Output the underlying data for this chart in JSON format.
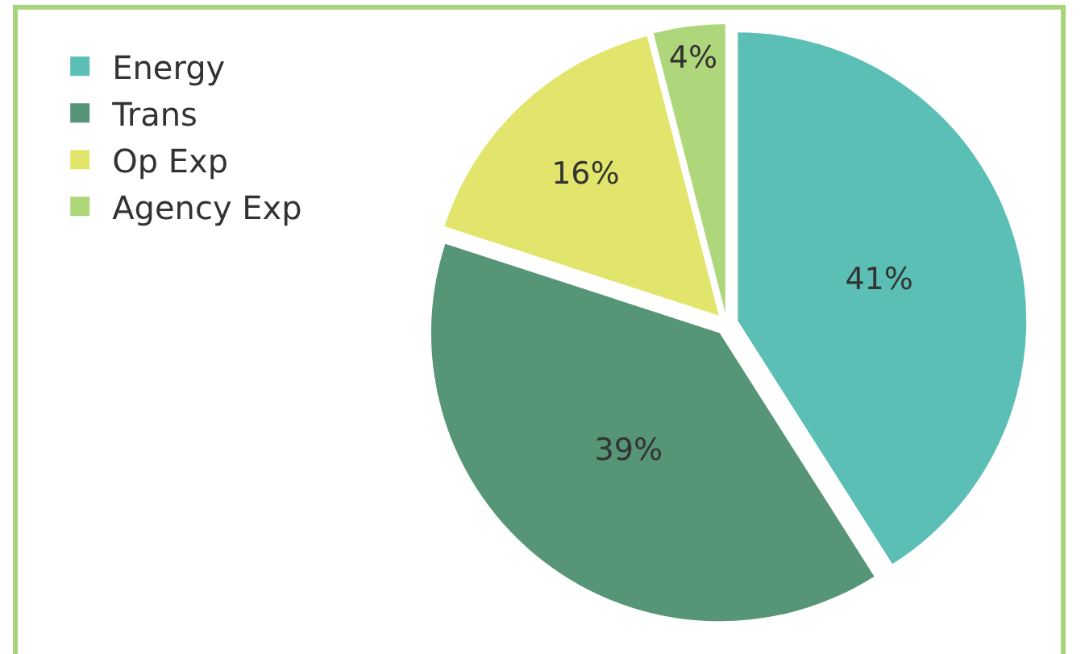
{
  "chart_data": {
    "type": "pie",
    "categories": [
      "Energy",
      "Trans",
      "Op Exp",
      "Agency Exp"
    ],
    "values": [
      41,
      39,
      16,
      4
    ],
    "value_labels": [
      "41%",
      "39%",
      "16%",
      "4%"
    ],
    "colors": [
      "#5bbfb5",
      "#579577",
      "#e2e56c",
      "#aed67a"
    ],
    "legend": "top left"
  }
}
